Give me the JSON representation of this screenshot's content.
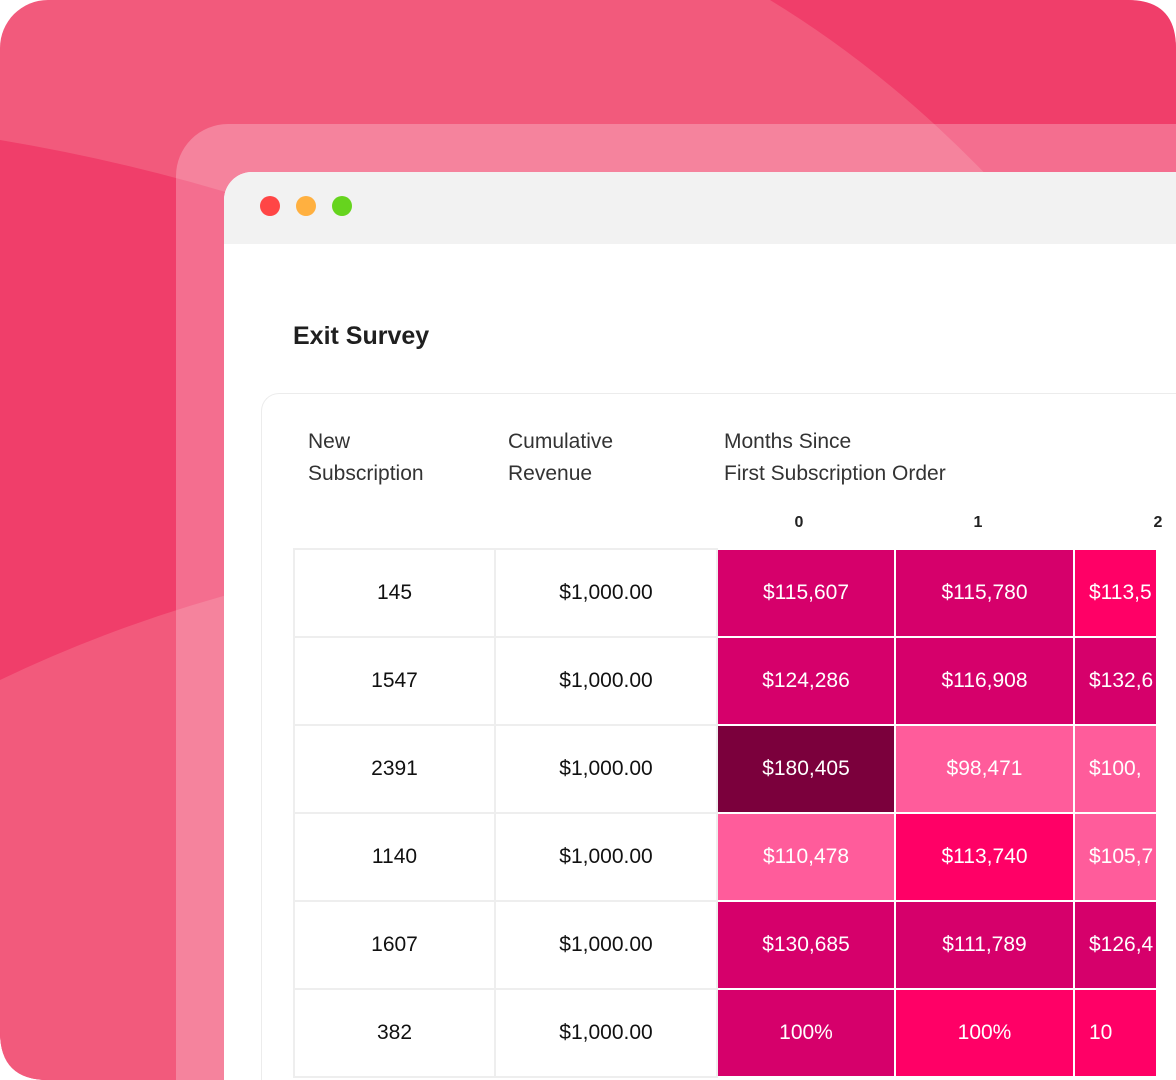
{
  "title": "Exit Survey",
  "headers": {
    "new_subscription": "New\nSubscription",
    "cumulative_revenue": "Cumulative\nRevenue",
    "months_since": "Months Since\nFirst Subscription Order"
  },
  "months": [
    "0",
    "1",
    "2"
  ],
  "colors": {
    "dark": "#d6006b",
    "bright": "#ff0066",
    "light": "#ff5c9b",
    "darkest": "#7b003c"
  },
  "rows": [
    {
      "new": "145",
      "revenue": "$1,000.00",
      "cells": [
        {
          "v": "$115,607",
          "c": "dark"
        },
        {
          "v": "$115,780",
          "c": "dark"
        },
        {
          "v": "$113,5",
          "c": "bright"
        }
      ]
    },
    {
      "new": "1547",
      "revenue": "$1,000.00",
      "cells": [
        {
          "v": "$124,286",
          "c": "dark"
        },
        {
          "v": "$116,908",
          "c": "dark"
        },
        {
          "v": "$132,6",
          "c": "dark"
        }
      ]
    },
    {
      "new": "2391",
      "revenue": "$1,000.00",
      "cells": [
        {
          "v": "$180,405",
          "c": "darkest"
        },
        {
          "v": "$98,471",
          "c": "light"
        },
        {
          "v": "$100,",
          "c": "light"
        }
      ]
    },
    {
      "new": "1140",
      "revenue": "$1,000.00",
      "cells": [
        {
          "v": "$110,478",
          "c": "light"
        },
        {
          "v": "$113,740",
          "c": "bright"
        },
        {
          "v": "$105,7",
          "c": "light"
        }
      ]
    },
    {
      "new": "1607",
      "revenue": "$1,000.00",
      "cells": [
        {
          "v": "$130,685",
          "c": "dark"
        },
        {
          "v": "$111,789",
          "c": "dark"
        },
        {
          "v": "$126,4",
          "c": "dark"
        }
      ]
    },
    {
      "new": "382",
      "revenue": "$1,000.00",
      "cells": [
        {
          "v": "100%",
          "c": "dark"
        },
        {
          "v": "100%",
          "c": "bright"
        },
        {
          "v": "10",
          "c": "bright"
        }
      ]
    }
  ]
}
